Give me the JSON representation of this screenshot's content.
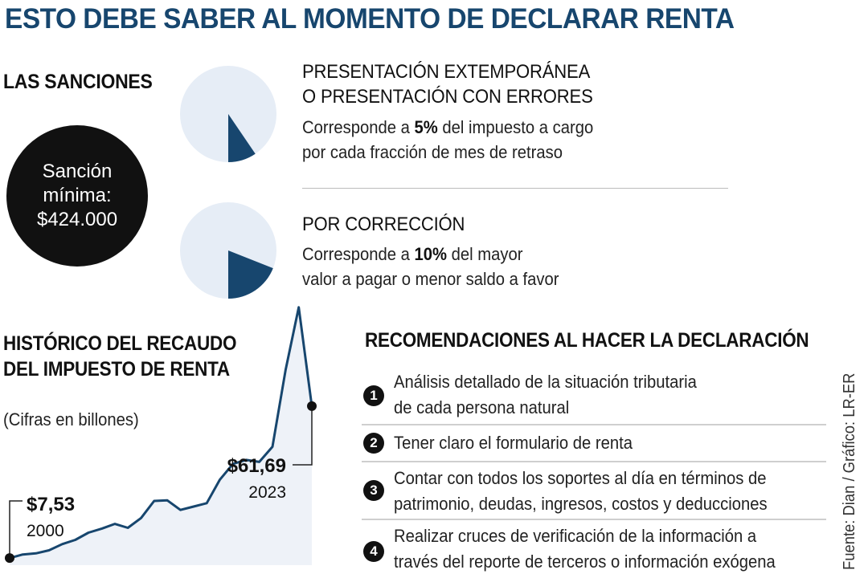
{
  "title": "ESTO DEBE SABER AL MOMENTO DE DECLARAR RENTA",
  "sanctions": {
    "heading": "LAS SANCIONES",
    "minimum": [
      "Sanción",
      "mínima:",
      "$424.000"
    ],
    "items": [
      {
        "title": [
          "PRESENTACIÓN EXTEMPORÁNEA",
          "O PRESENTACIÓN CON ERRORES"
        ],
        "pct": 5,
        "desc1_pre": "Corresponde a ",
        "desc1_bold": "5%",
        "desc1_post": " del impuesto a cargo",
        "desc2": "por cada fracción de mes de retraso"
      },
      {
        "title": [
          "POR CORRECCIÓN"
        ],
        "pct": 10,
        "desc1_pre": "Corresponde a ",
        "desc1_bold": "10%",
        "desc1_post": " del mayor",
        "desc2": "valor a pagar o menor saldo a favor"
      }
    ]
  },
  "history": {
    "heading": [
      "HISTÓRICO DEL RECAUDO",
      "DEL IMPUESTO DE RENTA"
    ],
    "unit": "(Cifras en billones)",
    "start_value": "$7,53",
    "start_year": "2000",
    "end_value": "$61,69",
    "end_year": "2023"
  },
  "chart_data": {
    "type": "area",
    "x": [
      2000,
      2001,
      2002,
      2003,
      2004,
      2005,
      2006,
      2007,
      2008,
      2009,
      2010,
      2011,
      2012,
      2013,
      2014,
      2015,
      2016,
      2017,
      2018,
      2019,
      2020,
      2021,
      2022,
      2023
    ],
    "values": [
      7.53,
      8.8,
      9.2,
      10.3,
      12.5,
      14.0,
      16.6,
      18.0,
      19.7,
      18.3,
      21.8,
      27.9,
      28.1,
      24.7,
      25.9,
      27.1,
      35.5,
      41.1,
      42.5,
      41.8,
      47.2,
      74.5,
      96.9,
      61.69
    ],
    "ylim": [
      5,
      100
    ],
    "xlabel": "",
    "ylabel": "",
    "labels": [
      {
        "x": 2000,
        "value": "$7,53",
        "year": "2000"
      },
      {
        "x": 2023,
        "value": "$61,69",
        "year": "2023"
      }
    ]
  },
  "recommendations": {
    "heading": "RECOMENDACIONES AL HACER LA DECLARACIÓN",
    "items": [
      {
        "num": "1",
        "lines": [
          "Análisis detallado de la situación tributaria",
          "de cada persona natural"
        ]
      },
      {
        "num": "2",
        "lines": [
          "Tener claro el formulario de renta"
        ]
      },
      {
        "num": "3",
        "lines": [
          "Contar con todos los soportes al día en términos de",
          "patrimonio, deudas, ingresos, costos y deducciones"
        ]
      },
      {
        "num": "4",
        "lines": [
          "Realizar cruces de verificación de la información a",
          "través del reporte de terceros o información exógena"
        ]
      }
    ]
  },
  "source": "Fuente: Dian / Gráfico: LR-ER",
  "colors": {
    "navy": "#17466e",
    "pie_bg": "#e6edf6",
    "area": "#eef2f8",
    "black": "#111111"
  }
}
